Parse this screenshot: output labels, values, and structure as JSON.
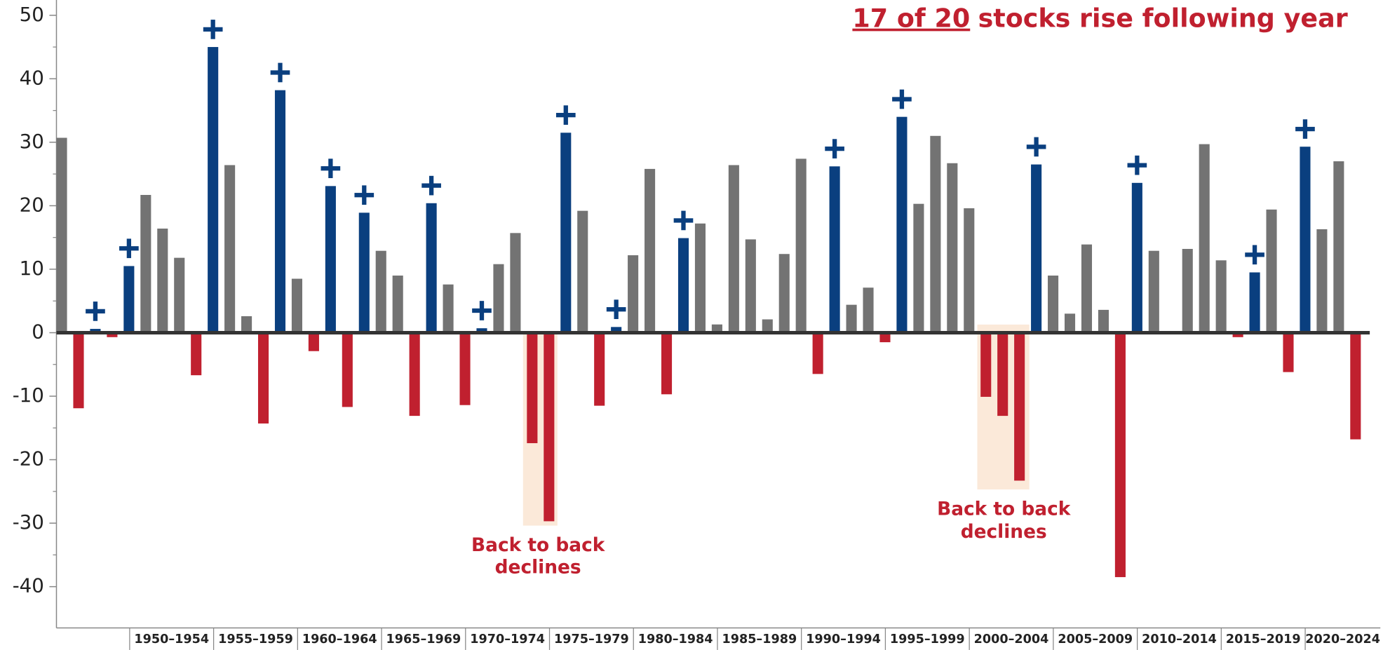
{
  "chart_data": {
    "type": "bar",
    "title_parts": [
      "17 of 20",
      "stocks rise following year"
    ],
    "annotations": [
      [
        "Back to back",
        "declines"
      ],
      [
        "Back to back",
        "declines"
      ]
    ],
    "group_labels": [
      "1950–1954",
      "1955–1959",
      "1960–1964",
      "1965–1969",
      "1970–1974",
      "1975–1979",
      "1980–1984",
      "1985–1989",
      "1990–1994",
      "1995–1999",
      "2000–2004",
      "2005–2009",
      "2010–2014",
      "2015–2019",
      "2020–2024"
    ],
    "values": [
      30.7,
      -11.9,
      0.6,
      -0.7,
      10.5,
      21.7,
      16.4,
      11.8,
      -6.7,
      45,
      26.4,
      2.6,
      -14.3,
      38.2,
      8.5,
      -2.9,
      23.1,
      -11.7,
      18.9,
      12.9,
      9,
      -13.1,
      20.4,
      7.6,
      -11.4,
      0.7,
      10.8,
      15.7,
      -17.4,
      -29.7,
      31.5,
      19.2,
      -11.5,
      0.9,
      12.2,
      25.8,
      -9.7,
      14.9,
      17.2,
      1.3,
      26.4,
      14.7,
      2.1,
      12.4,
      27.4,
      -6.5,
      26.2,
      4.4,
      7.1,
      -1.5,
      34,
      20.3,
      31,
      26.7,
      19.6,
      -10.1,
      -13.1,
      -23.3,
      26.5,
      9,
      3,
      13.9,
      3.6,
      -38.5,
      23.6,
      12.9,
      0,
      13.2,
      29.7,
      11.4,
      -0.7,
      9.5,
      19.4,
      -6.2,
      29.3,
      16.3,
      27,
      -16.8
    ],
    "colors": [
      "#737373",
      "#c0202f",
      "#0a3f7f",
      "#c0202f",
      "#0a3f7f",
      "#737373",
      "#737373",
      "#737373",
      "#c0202f",
      "#0a3f7f",
      "#737373",
      "#737373",
      "#c0202f",
      "#0a3f7f",
      "#737373",
      "#c0202f",
      "#0a3f7f",
      "#c0202f",
      "#0a3f7f",
      "#737373",
      "#737373",
      "#c0202f",
      "#0a3f7f",
      "#737373",
      "#c0202f",
      "#0a3f7f",
      "#737373",
      "#737373",
      "#c0202f",
      "#c0202f",
      "#0a3f7f",
      "#737373",
      "#c0202f",
      "#0a3f7f",
      "#737373",
      "#737373",
      "#c0202f",
      "#0a3f7f",
      "#737373",
      "#737373",
      "#737373",
      "#737373",
      "#737373",
      "#737373",
      "#737373",
      "#c0202f",
      "#0a3f7f",
      "#737373",
      "#737373",
      "#c0202f",
      "#0a3f7f",
      "#737373",
      "#737373",
      "#737373",
      "#737373",
      "#c0202f",
      "#c0202f",
      "#c0202f",
      "#0a3f7f",
      "#737373",
      "#737373",
      "#737373",
      "#737373",
      "#c0202f",
      "#0a3f7f",
      "#737373",
      "#737373",
      "#737373",
      "#737373",
      "#737373",
      "#c0202f",
      "#0a3f7f",
      "#737373",
      "#c0202f",
      "#0a3f7f",
      "#737373",
      "#737373",
      "#c0202f"
    ],
    "ylim": [
      -46.5,
      52.4
    ],
    "yticks": [
      -40,
      -30,
      -20,
      -10,
      0,
      10,
      20,
      30,
      40,
      50
    ]
  }
}
